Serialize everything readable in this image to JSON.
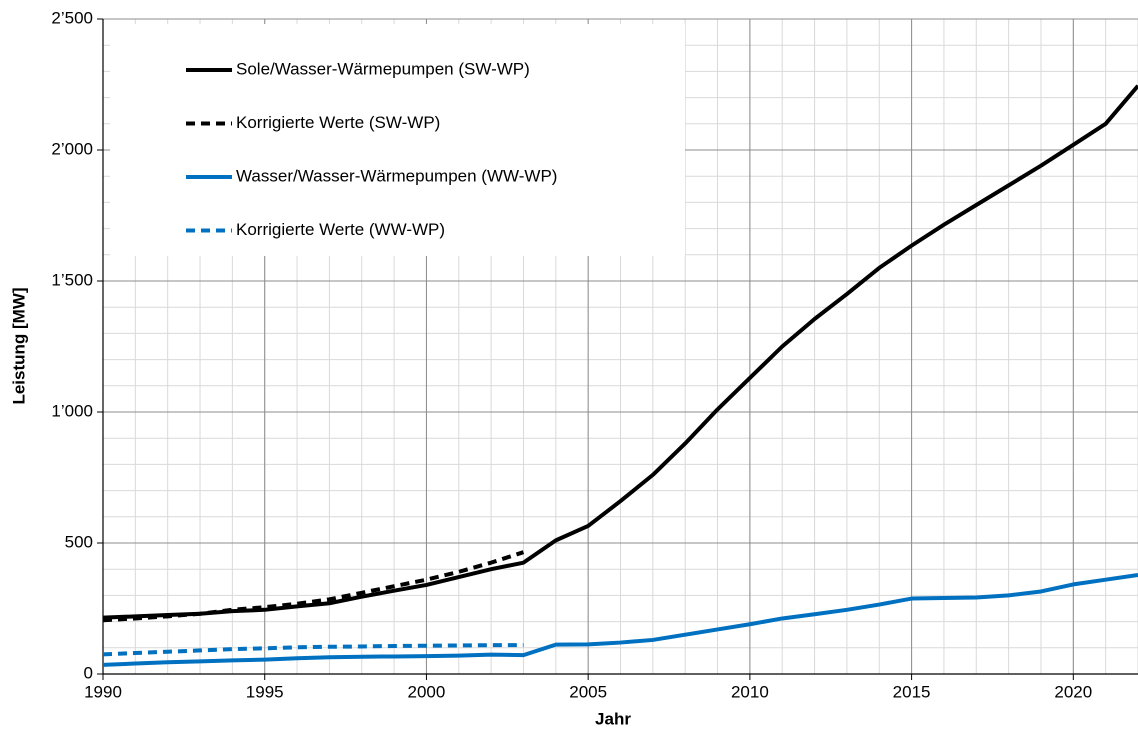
{
  "chart_data": {
    "type": "line",
    "x_label": "Jahr",
    "y_label": "Leistung [MW]",
    "x": [
      1990,
      1991,
      1992,
      1993,
      1994,
      1995,
      1996,
      1997,
      1998,
      1999,
      2000,
      2001,
      2002,
      2003,
      2004,
      2005,
      2006,
      2007,
      2008,
      2009,
      2010,
      2011,
      2012,
      2013,
      2014,
      2015,
      2016,
      2017,
      2018,
      2019,
      2020,
      2021,
      2022
    ],
    "series": [
      {
        "name": "Sole/Wasser-Wärmepumpen (SW-WP)",
        "color": "#000000",
        "dashed": false,
        "values": [
          215,
          220,
          225,
          230,
          240,
          245,
          258,
          270,
          295,
          318,
          340,
          370,
          400,
          425,
          510,
          565,
          660,
          760,
          880,
          1010,
          1130,
          1250,
          1355,
          1450,
          1550,
          1635,
          1715,
          1790,
          1865,
          1940,
          2020,
          2100,
          2245
        ]
      },
      {
        "name": "Korrigierte Werte (SW-WP)",
        "color": "#000000",
        "dashed": true,
        "values": [
          205,
          212,
          220,
          230,
          245,
          255,
          268,
          285,
          310,
          335,
          360,
          390,
          425,
          465,
          null,
          null,
          null,
          null,
          null,
          null,
          null,
          null,
          null,
          null,
          null,
          null,
          null,
          null,
          null,
          null,
          null,
          null,
          null
        ]
      },
      {
        "name": "Wasser/Wasser-Wärmepumpen (WW-WP)",
        "color": "#0070c0",
        "dashed": false,
        "values": [
          35,
          40,
          45,
          48,
          52,
          55,
          60,
          64,
          66,
          67,
          68,
          70,
          74,
          72,
          112,
          113,
          120,
          130,
          150,
          170,
          190,
          212,
          228,
          245,
          265,
          288,
          290,
          292,
          300,
          315,
          342,
          360,
          378
        ]
      },
      {
        "name": "Korrigierte Werte (WW-WP)",
        "color": "#0070c0",
        "dashed": true,
        "values": [
          75,
          80,
          85,
          90,
          95,
          98,
          102,
          104,
          105,
          107,
          108,
          109,
          110,
          110,
          null,
          null,
          null,
          null,
          null,
          null,
          null,
          null,
          null,
          null,
          null,
          null,
          null,
          null,
          null,
          null,
          null,
          null,
          null
        ]
      }
    ],
    "xlim": [
      1990,
      2022
    ],
    "xticks": [
      1990,
      1995,
      2000,
      2005,
      2010,
      2015,
      2020
    ],
    "ylim": [
      0,
      2500
    ],
    "yticks": [
      0,
      500,
      {
        "value": 1000,
        "label": "1’000"
      },
      {
        "value": 1500,
        "label": "1’500"
      },
      {
        "value": 2000,
        "label": "2’000"
      },
      {
        "value": 2500,
        "label": "2’500"
      }
    ],
    "grid": true,
    "minor_x_step": 1,
    "minor_y_step": 100,
    "legend": "upper left"
  }
}
